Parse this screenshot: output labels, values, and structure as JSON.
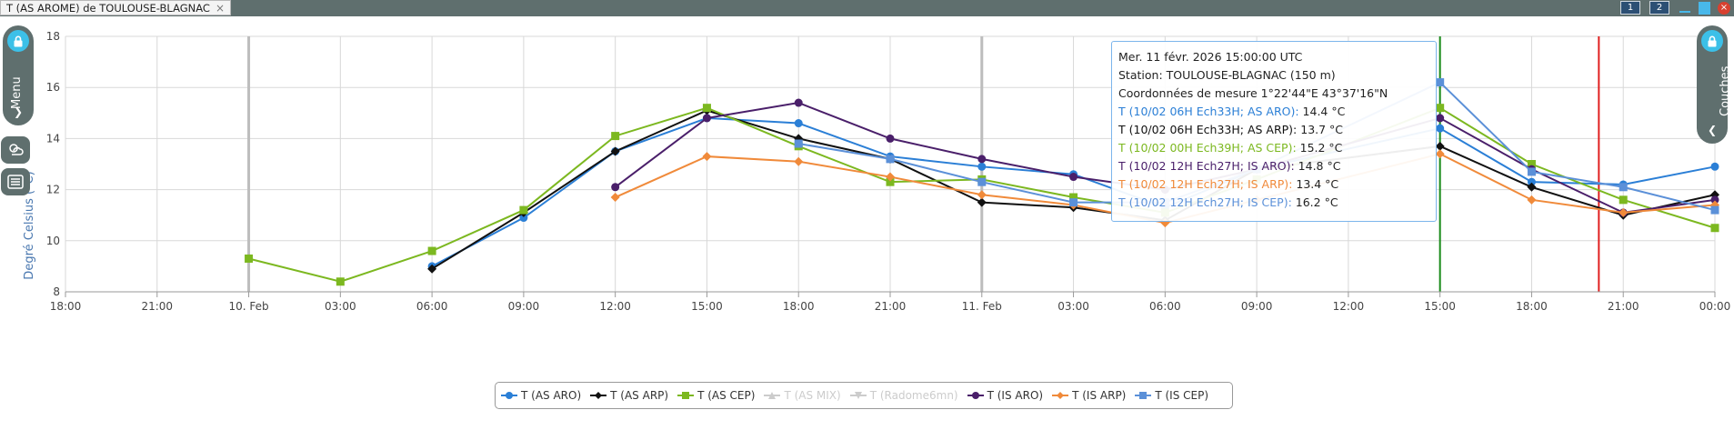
{
  "window": {
    "tab_title": "T (AS AROME) de TOULOUSE-BLAGNAC",
    "tab_close": "×",
    "screen1": "1",
    "screen2": "2",
    "close": "×"
  },
  "side_menu": {
    "label": "Menu",
    "icon": "lock-icon"
  },
  "side_layers": {
    "label": "Couches",
    "icon": "lock-icon"
  },
  "tooltip": {
    "date": "Mer. 11 févr. 2026 15:00:00 UTC",
    "station": "Station: TOULOUSE-BLAGNAC (150 m)",
    "coords": "Coordonnées de mesure 1°22'44\"E 43°37'16\"N",
    "rows": [
      {
        "label": "T (10/02 06H Ech33H; AS ARO):",
        "value": "14.4 °C",
        "color": "#2b7fd6"
      },
      {
        "label": "T (10/02 06H Ech33H; AS ARP):",
        "value": "13.7 °C",
        "color": "#111111"
      },
      {
        "label": "T (10/02 00H Ech39H; AS CEP):",
        "value": "15.2 °C",
        "color": "#7cb820"
      },
      {
        "label": "T (10/02 12H Ech27H; IS ARO):",
        "value": "14.8 °C",
        "color": "#4a1f6a"
      },
      {
        "label": "T (10/02 12H Ech27H; IS ARP):",
        "value": "13.4 °C",
        "color": "#f08a3a"
      },
      {
        "label": "T (10/02 12H Ech27H; IS CEP):",
        "value": "16.2 °C",
        "color": "#5b90d8"
      }
    ]
  },
  "chart_data": {
    "type": "line",
    "ylabel": "Degré Celsius (°C)",
    "ylim": [
      8,
      18
    ],
    "yticks": [
      8,
      10,
      12,
      14,
      16,
      18
    ],
    "x_range_hours": [
      0,
      54
    ],
    "x_ticks": [
      {
        "h": 0,
        "label": "18:00"
      },
      {
        "h": 3,
        "label": "21:00"
      },
      {
        "h": 6,
        "label": "10. Feb"
      },
      {
        "h": 9,
        "label": "03:00"
      },
      {
        "h": 12,
        "label": "06:00"
      },
      {
        "h": 15,
        "label": "09:00"
      },
      {
        "h": 18,
        "label": "12:00"
      },
      {
        "h": 21,
        "label": "15:00"
      },
      {
        "h": 24,
        "label": "18:00"
      },
      {
        "h": 27,
        "label": "21:00"
      },
      {
        "h": 30,
        "label": "11. Feb"
      },
      {
        "h": 33,
        "label": "03:00"
      },
      {
        "h": 36,
        "label": "06:00"
      },
      {
        "h": 39,
        "label": "09:00"
      },
      {
        "h": 42,
        "label": "12:00"
      },
      {
        "h": 45,
        "label": "15:00"
      },
      {
        "h": 48,
        "label": "18:00"
      },
      {
        "h": 51,
        "label": "21:00"
      },
      {
        "h": 54,
        "label": "00:00"
      }
    ],
    "day_lines": [
      6,
      30
    ],
    "vlines": [
      {
        "h": 45,
        "color": "#1a8a1a"
      },
      {
        "h": 50.2,
        "color": "#e02020"
      }
    ],
    "series": [
      {
        "name": "T (AS ARO)",
        "color": "#2b7fd6",
        "marker": "circle",
        "visible": true,
        "x": [
          12,
          15,
          18,
          21,
          24,
          27,
          30,
          33,
          36,
          39,
          45,
          48,
          51,
          54
        ],
        "y": [
          9.0,
          10.9,
          13.5,
          14.8,
          14.6,
          13.3,
          12.9,
          12.6,
          11.3,
          12.8,
          14.4,
          12.3,
          12.2,
          12.9
        ]
      },
      {
        "name": "T (AS ARP)",
        "color": "#111111",
        "marker": "diamond",
        "visible": true,
        "x": [
          12,
          15,
          18,
          21,
          24,
          27,
          30,
          33,
          36,
          39,
          45,
          48,
          51,
          54
        ],
        "y": [
          8.9,
          11.1,
          13.5,
          15.1,
          14.0,
          13.2,
          11.5,
          11.3,
          10.8,
          12.8,
          13.7,
          12.1,
          11.0,
          11.8
        ]
      },
      {
        "name": "T (AS CEP)",
        "color": "#7cb820",
        "marker": "square",
        "visible": true,
        "x": [
          6,
          9,
          12,
          15,
          18,
          21,
          24,
          27,
          30,
          33,
          36,
          39,
          45,
          48,
          51,
          54
        ],
        "y": [
          9.3,
          8.4,
          9.6,
          11.2,
          14.1,
          15.2,
          13.7,
          12.3,
          12.4,
          11.7,
          11.1,
          12.4,
          15.2,
          13.0,
          11.6,
          10.5
        ]
      },
      {
        "name": "T (AS MIX)",
        "color": "#cccccc",
        "marker": "triangle",
        "visible": false,
        "x": [],
        "y": []
      },
      {
        "name": "T (Radome6mn)",
        "color": "#cccccc",
        "marker": "triangle-down",
        "visible": false,
        "x": [],
        "y": []
      },
      {
        "name": "T (IS ARO)",
        "color": "#4a1f6a",
        "marker": "circle",
        "visible": true,
        "x": [
          18,
          21,
          24,
          27,
          30,
          33,
          36,
          39,
          45,
          48,
          51,
          54
        ],
        "y": [
          12.1,
          14.8,
          15.4,
          14.0,
          13.2,
          12.5,
          12.0,
          12.8,
          14.8,
          12.8,
          11.1,
          11.6
        ]
      },
      {
        "name": "T (IS ARP)",
        "color": "#f08a3a",
        "marker": "diamond",
        "visible": true,
        "x": [
          18,
          21,
          24,
          27,
          30,
          33,
          36,
          39,
          45,
          48,
          51,
          54
        ],
        "y": [
          11.7,
          13.3,
          13.1,
          12.5,
          11.8,
          11.4,
          10.7,
          11.6,
          13.4,
          11.6,
          11.1,
          11.4
        ]
      },
      {
        "name": "T (IS CEP)",
        "color": "#5b90d8",
        "marker": "square",
        "visible": true,
        "x": [
          24,
          27,
          30,
          33,
          36,
          39,
          45,
          48,
          51,
          54
        ],
        "y": [
          13.8,
          13.2,
          12.3,
          11.5,
          11.5,
          12.8,
          16.2,
          12.7,
          12.1,
          11.2
        ]
      }
    ]
  }
}
